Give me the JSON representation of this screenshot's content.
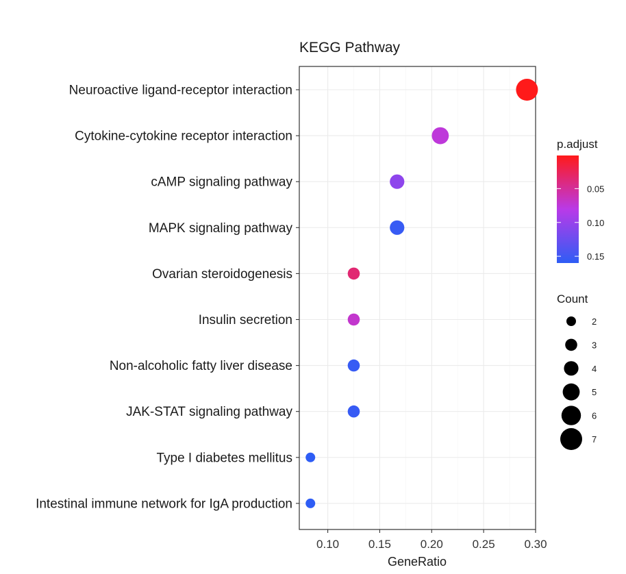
{
  "chart_data": {
    "type": "scatter",
    "title": "KEGG Pathway",
    "xlabel": "GeneRatio",
    "ylabel": "",
    "xlim": [
      0.0726,
      0.3
    ],
    "x_ticks": [
      "0.10",
      "0.15",
      "0.20",
      "0.25",
      "0.30"
    ],
    "x_tick_values": [
      0.1,
      0.15,
      0.2,
      0.25,
      0.3
    ],
    "categories": [
      "Neuroactive ligand-receptor interaction",
      "Cytokine-cytokine receptor interaction",
      "cAMP signaling pathway",
      "MAPK signaling pathway",
      "Ovarian steroidogenesis",
      "Insulin secretion",
      "Non-alcoholic fatty liver disease",
      "JAK-STAT signaling pathway",
      "Type I diabetes mellitus",
      "Intestinal immune network for IgA production"
    ],
    "gene_ratio": [
      0.2917,
      0.2083,
      0.1667,
      0.1667,
      0.125,
      0.125,
      0.125,
      0.125,
      0.0833,
      0.0833
    ],
    "count": [
      7,
      5,
      4,
      4,
      3,
      3,
      3,
      3,
      2,
      2
    ],
    "p_adjust": [
      0.001,
      0.075,
      0.105,
      0.155,
      0.035,
      0.07,
      0.155,
      0.155,
      0.16,
      0.16
    ],
    "legend": {
      "color_title": "p.adjust",
      "color_ticks": [
        "0.05",
        "0.10",
        "0.15"
      ],
      "color_tick_values": [
        0.05,
        0.1,
        0.15
      ],
      "color_range": [
        0.001,
        0.16
      ],
      "color_low": "#ff1a1a",
      "color_mid": "#b93ae8",
      "color_high": "#2e5df5",
      "size_title": "Count",
      "size_values": [
        2,
        3,
        4,
        5,
        6,
        7
      ],
      "size_labels": [
        "2",
        "3",
        "4",
        "5",
        "6",
        "7"
      ]
    }
  }
}
